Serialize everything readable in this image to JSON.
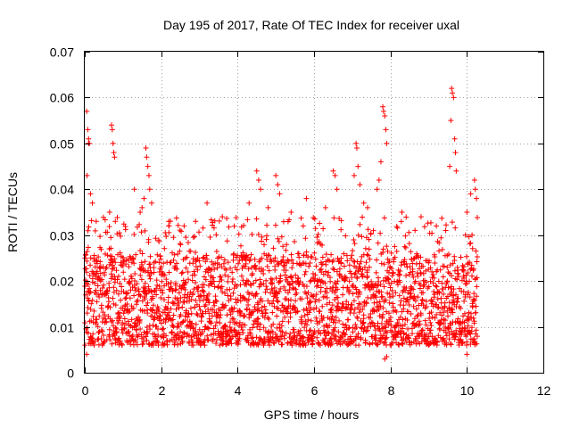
{
  "chart_data": {
    "type": "scatter",
    "title": "Day 195 of 2017, Rate Of TEC Index for receiver uxal",
    "xlabel": "GPS time / hours",
    "ylabel": "ROTI / TECUs",
    "xlim": [
      0,
      12
    ],
    "ylim": [
      0,
      0.07
    ],
    "xticks": [
      0,
      2,
      4,
      6,
      8,
      10,
      12
    ],
    "yticks": [
      0,
      0.01,
      0.02,
      0.03,
      0.04,
      0.05,
      0.06,
      0.07
    ],
    "xtick_labels": [
      "0",
      "2",
      "4",
      "6",
      "8",
      "10",
      "12"
    ],
    "ytick_labels": [
      "0",
      "0.01",
      "0.02",
      "0.03",
      "0.04",
      "0.05",
      "0.06",
      "0.07"
    ],
    "grid": true,
    "marker": "+",
    "color": "#ff0000",
    "series": [
      {
        "name": "ROTI",
        "x_range": [
          0.0,
          10.28
        ],
        "typical_band": [
          0.006,
          0.026
        ],
        "points": [
          [
            0.05,
            0.057
          ],
          [
            0.08,
            0.053
          ],
          [
            0.1,
            0.051
          ],
          [
            0.12,
            0.05
          ],
          [
            0.1,
            0.05
          ],
          [
            0.06,
            0.043
          ],
          [
            0.15,
            0.039
          ],
          [
            0.2,
            0.037
          ],
          [
            0.3,
            0.033
          ],
          [
            0.7,
            0.054
          ],
          [
            0.72,
            0.053
          ],
          [
            0.74,
            0.05
          ],
          [
            0.76,
            0.048
          ],
          [
            0.78,
            0.047
          ],
          [
            0.65,
            0.035
          ],
          [
            0.8,
            0.033
          ],
          [
            1.6,
            0.049
          ],
          [
            1.62,
            0.047
          ],
          [
            1.65,
            0.045
          ],
          [
            1.68,
            0.043
          ],
          [
            1.7,
            0.04
          ],
          [
            1.55,
            0.038
          ],
          [
            1.5,
            0.036
          ],
          [
            1.45,
            0.035
          ],
          [
            1.75,
            0.037
          ],
          [
            1.3,
            0.04
          ],
          [
            2.2,
            0.033
          ],
          [
            2.6,
            0.032
          ],
          [
            2.9,
            0.033
          ],
          [
            3.2,
            0.037
          ],
          [
            3.6,
            0.034
          ],
          [
            4.5,
            0.044
          ],
          [
            4.55,
            0.042
          ],
          [
            4.6,
            0.04
          ],
          [
            4.3,
            0.037
          ],
          [
            4.8,
            0.036
          ],
          [
            5.0,
            0.043
          ],
          [
            5.05,
            0.041
          ],
          [
            5.1,
            0.039
          ],
          [
            5.4,
            0.035
          ],
          [
            5.8,
            0.038
          ],
          [
            6.5,
            0.044
          ],
          [
            6.55,
            0.043
          ],
          [
            6.6,
            0.04
          ],
          [
            6.3,
            0.036
          ],
          [
            7.1,
            0.05
          ],
          [
            7.12,
            0.049
          ],
          [
            7.15,
            0.045
          ],
          [
            7.05,
            0.043
          ],
          [
            7.2,
            0.041
          ],
          [
            7.3,
            0.037
          ],
          [
            7.4,
            0.036
          ],
          [
            7.8,
            0.058
          ],
          [
            7.82,
            0.057
          ],
          [
            7.85,
            0.056
          ],
          [
            7.88,
            0.053
          ],
          [
            7.9,
            0.05
          ],
          [
            7.75,
            0.046
          ],
          [
            7.7,
            0.042
          ],
          [
            7.65,
            0.04
          ],
          [
            8.3,
            0.035
          ],
          [
            8.8,
            0.034
          ],
          [
            9.2,
            0.032
          ],
          [
            9.6,
            0.062
          ],
          [
            9.62,
            0.061
          ],
          [
            9.65,
            0.06
          ],
          [
            9.58,
            0.055
          ],
          [
            9.68,
            0.051
          ],
          [
            9.7,
            0.048
          ],
          [
            9.55,
            0.045
          ],
          [
            9.72,
            0.044
          ],
          [
            10.0,
            0.035
          ],
          [
            10.1,
            0.039
          ],
          [
            10.2,
            0.042
          ],
          [
            10.22,
            0.04
          ],
          [
            10.25,
            0.038
          ],
          [
            7.85,
            0.003
          ],
          [
            7.9,
            0.0035
          ],
          [
            10.0,
            0.004
          ],
          [
            0.05,
            0.004
          ]
        ]
      }
    ]
  }
}
